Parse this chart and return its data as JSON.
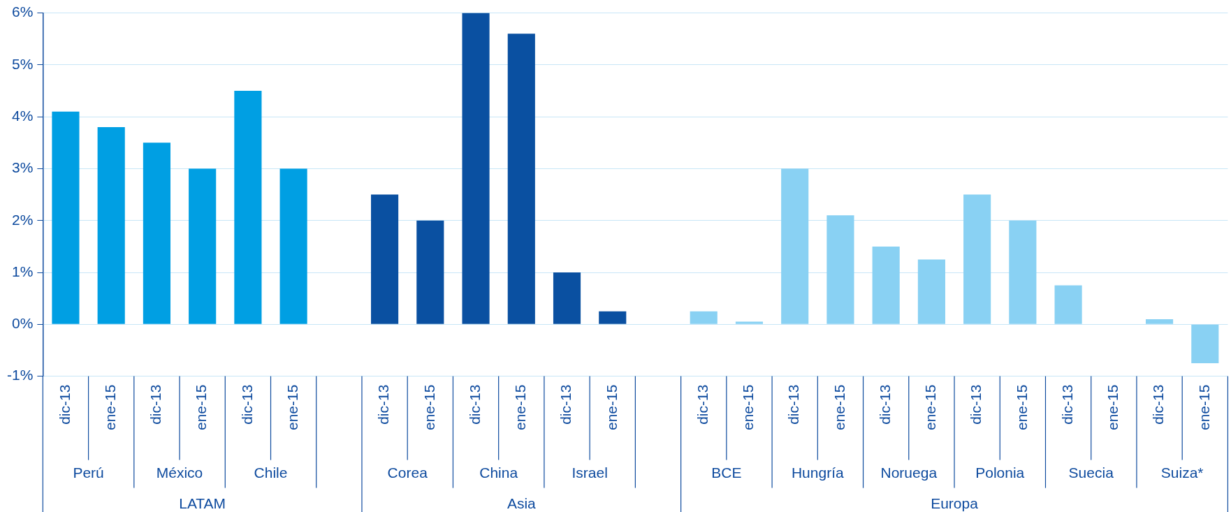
{
  "chart_data": {
    "type": "bar",
    "categories": [
      "dic-13",
      "ene-15",
      "dic-13",
      "ene-15",
      "dic-13",
      "ene-15",
      null,
      "dic-13",
      "ene-15",
      "dic-13",
      "ene-15",
      "dic-13",
      "ene-15",
      null,
      "dic-13",
      "ene-15",
      "dic-13",
      "ene-15",
      "dic-13",
      "ene-15",
      "dic-13",
      "ene-15",
      "dic-13",
      "ene-15",
      "dic-13",
      "ene-15"
    ],
    "values": [
      4.1,
      3.8,
      3.5,
      3.0,
      4.5,
      3.0,
      null,
      2.5,
      2.0,
      6.0,
      5.6,
      1.0,
      0.25,
      null,
      0.25,
      0.05,
      3.0,
      2.1,
      1.5,
      1.25,
      2.5,
      2.0,
      0.75,
      0,
      0.1,
      -0.75
    ],
    "colors": [
      "#009fe3",
      "#009fe3",
      "#009fe3",
      "#009fe3",
      "#009fe3",
      "#009fe3",
      null,
      "#0a50a1",
      "#0a50a1",
      "#0a50a1",
      "#0a50a1",
      "#0a50a1",
      "#0a50a1",
      null,
      "#89d1f3",
      "#89d1f3",
      "#89d1f3",
      "#89d1f3",
      "#89d1f3",
      "#89d1f3",
      "#89d1f3",
      "#89d1f3",
      "#89d1f3",
      "#89d1f3",
      "#89d1f3",
      "#89d1f3"
    ],
    "ylim": [
      -1,
      6
    ],
    "yticks": [
      {
        "value": -1,
        "label": "-1%"
      },
      {
        "value": 0,
        "label": "0%"
      },
      {
        "value": 1,
        "label": "1%"
      },
      {
        "value": 2,
        "label": "2%"
      },
      {
        "value": 3,
        "label": "3%"
      },
      {
        "value": 4,
        "label": "4%"
      },
      {
        "value": 5,
        "label": "5%"
      },
      {
        "value": 6,
        "label": "6%"
      }
    ],
    "grid": "y",
    "annotations": [
      "Perú",
      "México",
      "Chile",
      "Corea",
      "China",
      "Israel",
      "BCE",
      "Hungría",
      "Noruega",
      "Polonia",
      "Suecia",
      "Suiza*",
      "LATAM",
      "Asia",
      "Europa"
    ]
  }
}
